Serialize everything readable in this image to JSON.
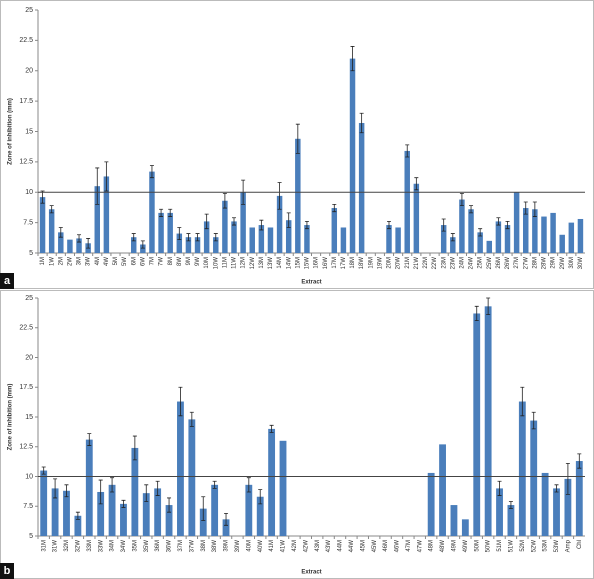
{
  "chart_data": [
    {
      "type": "bar",
      "panel_label": "a",
      "x_label": "Extract",
      "y_label": "Zone of inhibition (mm)",
      "color": "#4a7ebb",
      "categories": [
        "1M",
        "1W",
        "2M",
        "2W",
        "3M",
        "3W",
        "4M",
        "4W",
        "5M",
        "5W",
        "6M",
        "6W",
        "7M",
        "7W",
        "8M",
        "8W",
        "9M",
        "9W",
        "10M",
        "10W",
        "11M",
        "11W",
        "12M",
        "12W",
        "13M",
        "13W",
        "14M",
        "14W",
        "15M",
        "15W",
        "16M",
        "16W",
        "17M",
        "17W",
        "18M",
        "18W",
        "19M",
        "19W",
        "20M",
        "20W",
        "21M",
        "21W",
        "22M",
        "22W",
        "23M",
        "23W",
        "24M",
        "24W",
        "25M",
        "25W",
        "26M",
        "26W",
        "27M",
        "27W",
        "28M",
        "28W",
        "29M",
        "29W",
        "30M",
        "30W"
      ],
      "values": [
        9.6,
        8.6,
        6.7,
        6.1,
        6.2,
        5.8,
        10.5,
        11.3,
        null,
        null,
        6.3,
        5.7,
        11.7,
        8.3,
        8.3,
        6.6,
        6.3,
        6.3,
        7.6,
        6.3,
        9.3,
        7.6,
        10.0,
        7.1,
        7.3,
        7.1,
        9.7,
        7.7,
        14.4,
        7.3,
        null,
        null,
        8.7,
        7.1,
        21.0,
        15.7,
        null,
        null,
        7.3,
        7.1,
        13.4,
        10.7,
        null,
        null,
        7.3,
        6.3,
        9.4,
        8.6,
        6.7,
        6.0,
        7.6,
        7.3,
        10.0,
        8.7,
        8.6,
        8.0,
        8.3,
        6.5,
        7.5,
        7.8
      ],
      "errors": [
        0.5,
        0.3,
        0.4,
        null,
        0.3,
        0.4,
        1.5,
        1.2,
        null,
        null,
        0.3,
        0.3,
        0.5,
        0.3,
        0.3,
        0.5,
        0.3,
        0.3,
        0.6,
        0.3,
        0.6,
        0.3,
        1.0,
        null,
        0.4,
        null,
        1.1,
        0.6,
        1.2,
        0.3,
        null,
        null,
        0.3,
        null,
        1.0,
        0.8,
        null,
        null,
        0.3,
        null,
        0.5,
        0.5,
        null,
        null,
        0.5,
        0.3,
        0.5,
        0.3,
        0.3,
        null,
        0.3,
        0.3,
        null,
        0.5,
        0.6,
        null,
        null,
        null,
        null,
        null
      ],
      "ylim": [
        5,
        25
      ],
      "yticks": [
        5,
        7.5,
        10,
        12.5,
        15,
        17.5,
        20,
        22.5,
        25
      ],
      "reference_line": 10
    },
    {
      "type": "bar",
      "panel_label": "b",
      "x_label": "Extract",
      "y_label": "Zone of inhibition (mm)",
      "color": "#4a7ebb",
      "categories": [
        "31M",
        "31W",
        "32M",
        "32W",
        "33M",
        "33W",
        "34M",
        "34W",
        "35M",
        "35W",
        "36M",
        "36W",
        "37M",
        "37W",
        "38M",
        "38W",
        "39M",
        "39W",
        "40M",
        "40W",
        "41M",
        "41W",
        "42M",
        "42W",
        "43M",
        "43W",
        "44M",
        "44W",
        "45M",
        "45W",
        "46M",
        "46W",
        "47M",
        "47W",
        "48M",
        "48W",
        "49M",
        "49W",
        "50M",
        "50W",
        "51M",
        "51W",
        "52M",
        "52W",
        "53M",
        "53W",
        "Amp",
        "Chl"
      ],
      "values": [
        10.5,
        9.0,
        8.8,
        6.7,
        13.1,
        8.7,
        9.3,
        7.7,
        12.4,
        8.6,
        9.0,
        7.6,
        16.3,
        14.8,
        7.3,
        9.3,
        6.4,
        null,
        9.3,
        8.3,
        14.0,
        13.0,
        null,
        null,
        null,
        null,
        null,
        null,
        null,
        null,
        null,
        null,
        null,
        null,
        10.3,
        12.7,
        7.6,
        6.4,
        23.7,
        24.3,
        9.0,
        7.6,
        16.3,
        14.7,
        10.3,
        9.0,
        9.8,
        11.3
      ],
      "errors": [
        0.3,
        0.8,
        0.5,
        0.3,
        0.5,
        1.0,
        0.6,
        0.3,
        1.0,
        0.7,
        0.6,
        0.6,
        1.2,
        0.6,
        1.0,
        0.3,
        0.5,
        null,
        0.6,
        0.6,
        0.3,
        null,
        null,
        null,
        null,
        null,
        null,
        null,
        null,
        null,
        null,
        null,
        null,
        null,
        null,
        null,
        null,
        null,
        0.6,
        0.7,
        0.6,
        0.3,
        1.2,
        0.7,
        null,
        0.3,
        1.3,
        0.6
      ],
      "ylim": [
        5,
        25
      ],
      "yticks": [
        5,
        7.5,
        10,
        12.5,
        15,
        17.5,
        20,
        22.5,
        25
      ],
      "reference_line": 10
    }
  ]
}
